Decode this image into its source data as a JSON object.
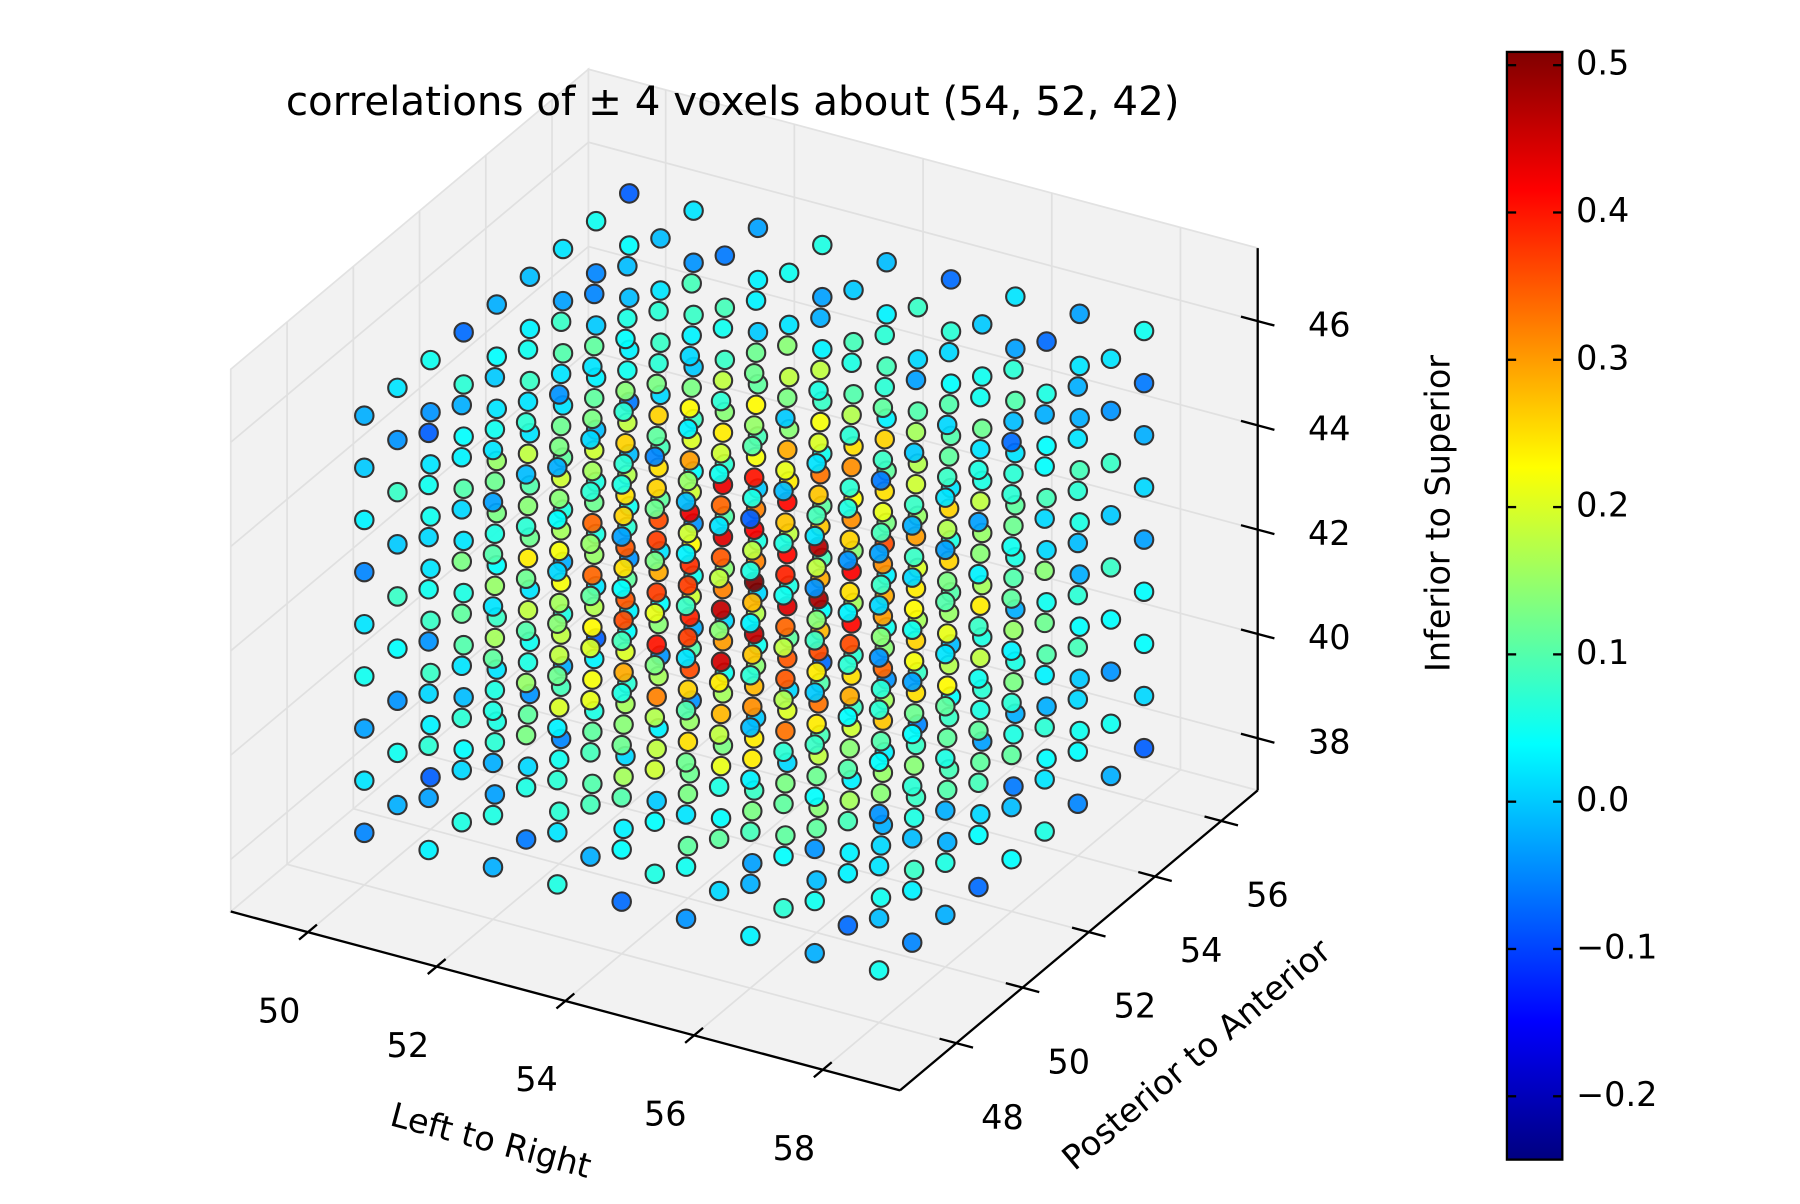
{
  "chart_data": {
    "type": "scatter3d",
    "title": "correlations of ± 4 voxels about (54, 52, 42)",
    "xlabel": "Left to Right",
    "ylabel": "Posterior to Anterior",
    "zlabel": "Inferior to Superior",
    "x": [
      50,
      51,
      52,
      53,
      54,
      55,
      56,
      57,
      58
    ],
    "y": [
      48,
      49,
      50,
      51,
      52,
      53,
      54,
      55,
      56
    ],
    "z": [
      38,
      39,
      40,
      41,
      42,
      43,
      44,
      45,
      46
    ],
    "xlim": [
      48.8,
      59.2
    ],
    "ylim": [
      46.3,
      57.1
    ],
    "zlim": [
      37,
      47.4
    ],
    "xticks": [
      50,
      52,
      54,
      56,
      58
    ],
    "yticks": [
      48,
      50,
      52,
      54,
      56
    ],
    "zticks": [
      38,
      40,
      42,
      44,
      46
    ],
    "colormap": "jet",
    "clim": [
      -0.243,
      0.509
    ],
    "cticks": [
      {
        "value": -0.2,
        "label": "−0.2"
      },
      {
        "value": -0.1,
        "label": "−0.1"
      },
      {
        "value": 0,
        "label": "0.0"
      },
      0.1,
      0.2,
      0.3,
      0.4,
      0.5
    ],
    "grid": true,
    "values": [
      [
        [
          -0.05,
          0.02,
          -0.03,
          0.05,
          0.02,
          -0.05,
          0.03,
          0,
          -0.02
        ],
        [
          -0.02,
          0.05,
          -0.04,
          0.04,
          0.08,
          0,
          0.08,
          -0.04,
          0.02
        ],
        [
          -0.08,
          0.03,
          0.08,
          0.08,
          0.02,
          0.05,
          0.02,
          -0.04,
          0.05
        ],
        [
          0.04,
          -0.01,
          0.1,
          0.06,
          0.02,
          0.1,
          0.04,
          0.07,
          -0.07
        ],
        [
          0.06,
          0.02,
          0.08,
          0.04,
          0.13,
          0.15,
          0.02,
          0.04,
          -0.02
        ],
        [
          -0.04,
          0.05,
          0.02,
          0.12,
          0.1,
          0.02,
          0.08,
          0.03,
          -0.01
        ],
        [
          -0.02,
          0.06,
          -0.02,
          0.06,
          0.11,
          0.02,
          0.1,
          -0.03,
          0.02
        ],
        [
          -0.08,
          0.02,
          0.06,
          0.06,
          -0.01,
          0.03,
          0,
          -0.05,
          0.05
        ],
        [
          0.03,
          -0.04,
          0.05,
          -0.01,
          -0.06,
          0.03,
          -0.01,
          0.04,
          -0.08
        ]
      ],
      [
        [
          0.03,
          -0.03,
          0.07,
          0.01,
          -0.04,
          0.05,
          0.01,
          0.05,
          -0.08
        ],
        [
          0.06,
          0.01,
          0.07,
          0.02,
          0.11,
          0.13,
          0.01,
          0.03,
          -0.02
        ],
        [
          -0.03,
          0.07,
          0.06,
          0.16,
          0.15,
          0.06,
          0.12,
          0.05,
          0
        ],
        [
          0.01,
          0.11,
          0.06,
          0.18,
          0.24,
          0.14,
          0.18,
          0.02,
          0.05
        ],
        [
          -0.05,
          0.09,
          0.18,
          0.22,
          0.16,
          0.19,
          0.12,
          0.02,
          0.08
        ],
        [
          0.06,
          0.03,
          0.17,
          0.15,
          0.12,
          0.19,
          0.11,
          0.11,
          -0.05
        ],
        [
          0.07,
          0.04,
          0.11,
          0.07,
          0.17,
          0.18,
          0.05,
          0.06,
          -0.01
        ],
        [
          -0.04,
          0.04,
          0.02,
          0.11,
          0.09,
          0.01,
          0.08,
          0.02,
          -0.01
        ],
        [
          -0.02,
          0.05,
          -0.04,
          0.04,
          0.08,
          0,
          0.08,
          -0.04,
          0.02
        ]
      ],
      [
        [
          -0.02,
          0.06,
          -0.02,
          0.06,
          0.11,
          0.02,
          0.1,
          -0.03,
          0.02
        ],
        [
          -0.06,
          0.06,
          0.13,
          0.15,
          0.1,
          0.12,
          0.07,
          -0.01,
          0.07
        ],
        [
          0.07,
          0.05,
          0.2,
          0.18,
          0.16,
          0.22,
          0.14,
          0.13,
          -0.04
        ],
        [
          0.1,
          0.11,
          0.22,
          0.23,
          0.34,
          0.34,
          0.16,
          0.13,
          0.02
        ],
        [
          0.01,
          0.16,
          0.2,
          0.35,
          0.35,
          0.25,
          0.26,
          0.14,
          0.04
        ],
        [
          0.03,
          0.16,
          0.14,
          0.29,
          0.36,
          0.25,
          0.26,
          0.07,
          0.07
        ],
        [
          -0.04,
          0.1,
          0.19,
          0.23,
          0.19,
          0.2,
          0.13,
          0.03,
          0.09
        ],
        [
          0.05,
          0.01,
          0.14,
          0.1,
          0.07,
          0.14,
          0.08,
          0.09,
          -0.06
        ],
        [
          0.05,
          0.01,
          0.06,
          0,
          0.09,
          0.11,
          0,
          0.03,
          -0.03
        ]
      ],
      [
        [
          0.06,
          0.02,
          0.07,
          0.03,
          0.12,
          0.14,
          0.01,
          0.04,
          -0.02
        ],
        [
          -0.02,
          0.09,
          0.09,
          0.21,
          0.2,
          0.11,
          0.15,
          0.07,
          0.01
        ],
        [
          0.03,
          0.16,
          0.14,
          0.29,
          0.36,
          0.25,
          0.26,
          0.07,
          0.07
        ],
        [
          0,
          0.18,
          0.32,
          0.4,
          0.37,
          0.37,
          0.26,
          0.11,
          0.13
        ],
        [
          0.12,
          0.15,
          0.36,
          0.39,
          0.38,
          0.43,
          0.3,
          0.23,
          0.01
        ],
        [
          0.13,
          0.16,
          0.3,
          0.32,
          0.44,
          0.43,
          0.24,
          0.18,
          0.05
        ],
        [
          0,
          0.14,
          0.17,
          0.32,
          0.32,
          0.22,
          0.23,
          0.12,
          0.03
        ],
        [
          0.01,
          0.11,
          0.06,
          0.18,
          0.24,
          0.14,
          0.18,
          0.02,
          0.05
        ],
        [
          -0.07,
          0.04,
          0.09,
          0.11,
          0.05,
          0.08,
          0.03,
          -0.03,
          0.06
        ]
      ],
      [
        [
          -0.07,
          0.04,
          0.1,
          0.12,
          0.06,
          0.09,
          0.04,
          -0.03,
          0.06
        ],
        [
          0.06,
          0.04,
          0.19,
          0.17,
          0.13,
          0.21,
          0.13,
          0.12,
          -0.05
        ],
        [
          0.11,
          0.13,
          0.25,
          0.26,
          0.37,
          0.37,
          0.19,
          0.15,
          0.03
        ],
        [
          0.04,
          0.21,
          0.28,
          0.45,
          0.46,
          0.35,
          0.34,
          0.19,
          0.07
        ],
        [
          0.08,
          0.24,
          0.28,
          0.46,
          0.51,
          0.42,
          0.4,
          0.15,
          0.12
        ],
        [
          0.01,
          0.2,
          0.35,
          0.44,
          0.41,
          0.41,
          0.29,
          0.13,
          0.14
        ],
        [
          0.09,
          0.1,
          0.28,
          0.29,
          0.27,
          0.33,
          0.22,
          0.18,
          -0.02
        ],
        [
          0.08,
          0.07,
          0.16,
          0.14,
          0.23,
          0.25,
          0.1,
          0.09,
          0
        ],
        [
          -0.04,
          0.05,
          0.03,
          0.13,
          0.11,
          0.03,
          0.09,
          0.03,
          -0.01
        ]
      ],
      [
        [
          -0.04,
          0.05,
          0.02,
          0.12,
          0.1,
          0.02,
          0.08,
          0.03,
          -0.01
        ],
        [
          0.01,
          0.11,
          0.06,
          0.18,
          0.24,
          0.14,
          0.18,
          0.02,
          0.05
        ],
        [
          -0.03,
          0.13,
          0.24,
          0.31,
          0.27,
          0.28,
          0.18,
          0.06,
          0.1
        ],
        [
          0.11,
          0.13,
          0.33,
          0.35,
          0.34,
          0.39,
          0.27,
          0.21,
          0
        ],
        [
          0.14,
          0.18,
          0.33,
          0.36,
          0.48,
          0.47,
          0.27,
          0.2,
          0.06
        ],
        [
          0.03,
          0.19,
          0.25,
          0.41,
          0.42,
          0.31,
          0.31,
          0.17,
          0.06
        ],
        [
          0.03,
          0.16,
          0.14,
          0.29,
          0.36,
          0.25,
          0.26,
          0.07,
          0.07
        ],
        [
          -0.05,
          0.08,
          0.16,
          0.2,
          0.15,
          0.17,
          0.1,
          0.01,
          0.08
        ],
        [
          0.04,
          -0.01,
          0.1,
          0.06,
          0.02,
          0.1,
          0.04,
          0.07,
          -0.07
        ]
      ],
      [
        [
          0.03,
          -0.02,
          0.09,
          0.03,
          -0.01,
          0.07,
          0.03,
          0.06,
          -0.08
        ],
        [
          0.07,
          0.04,
          0.11,
          0.07,
          0.17,
          0.18,
          0.05,
          0.06,
          -0.01
        ],
        [
          -0.01,
          0.11,
          0.12,
          0.24,
          0.24,
          0.14,
          0.18,
          0.09,
          0.02
        ],
        [
          0.03,
          0.16,
          0.14,
          0.29,
          0.36,
          0.25,
          0.26,
          0.07,
          0.07
        ],
        [
          -0.02,
          0.15,
          0.27,
          0.34,
          0.3,
          0.31,
          0.21,
          0.08,
          0.11
        ],
        [
          0.08,
          0.08,
          0.25,
          0.26,
          0.24,
          0.3,
          0.19,
          0.16,
          -0.03
        ],
        [
          0.09,
          0.08,
          0.17,
          0.15,
          0.26,
          0.26,
          0.11,
          0.1,
          0.01
        ],
        [
          -0.03,
          0.07,
          0.06,
          0.16,
          0.15,
          0.06,
          0.12,
          0.05,
          0
        ],
        [
          -0.02,
          0.06,
          -0.02,
          0.06,
          0.11,
          0.02,
          0.1,
          -0.03,
          0.02
        ]
      ],
      [
        [
          -0.02,
          0.05,
          -0.04,
          0.04,
          0.08,
          0,
          0.08,
          -0.04,
          0.02
        ],
        [
          -0.07,
          0.03,
          0.09,
          0.1,
          0.04,
          0.07,
          0.03,
          -0.04,
          0.06
        ],
        [
          0.05,
          0.01,
          0.14,
          0.1,
          0.07,
          0.14,
          0.08,
          0.09,
          -0.06
        ],
        [
          0.08,
          0.06,
          0.14,
          0.12,
          0.22,
          0.23,
          0.08,
          0.08,
          0
        ],
        [
          -0.02,
          0.1,
          0.11,
          0.23,
          0.21,
          0.13,
          0.17,
          0.08,
          0.01
        ],
        [
          0.01,
          0.11,
          0.06,
          0.18,
          0.24,
          0.14,
          0.18,
          0.02,
          0.05
        ],
        [
          -0.06,
          0.06,
          0.13,
          0.15,
          0.1,
          0.12,
          0.07,
          -0.01,
          0.07
        ],
        [
          0.04,
          -0.02,
          0.1,
          0.05,
          0.01,
          0.09,
          0.04,
          0.06,
          -0.07
        ],
        [
          0.05,
          0,
          0.04,
          -0.02,
          0.06,
          0.09,
          -0.02,
          0.02,
          -0.03
        ]
      ],
      [
        [
          0.05,
          -0.01,
          0.02,
          -0.04,
          0.04,
          0.07,
          -0.04,
          0.01,
          -0.03
        ],
        [
          -0.05,
          0.03,
          -0.01,
          0.07,
          0.04,
          -0.03,
          0.05,
          0.01,
          -0.02
        ],
        [
          -0.02,
          0.06,
          -0.02,
          0.06,
          0.11,
          0.02,
          0.1,
          -0.03,
          0.02
        ],
        [
          -0.07,
          0.04,
          0.09,
          0.11,
          0.05,
          0.08,
          0.03,
          -0.03,
          0.06
        ],
        [
          0.04,
          -0.01,
          0.11,
          0.07,
          0.03,
          0.11,
          0.05,
          0.07,
          -0.07
        ],
        [
          0.06,
          0.02,
          0.07,
          0.03,
          0.12,
          0.14,
          0.01,
          0.04,
          -0.02
        ],
        [
          -0.05,
          0.04,
          0.01,
          0.09,
          0.07,
          -0.01,
          0.07,
          0.02,
          -0.02
        ],
        [
          -0.02,
          0.05,
          -0.04,
          0.04,
          0.08,
          0,
          0.08,
          -0.04,
          0.02
        ],
        [
          -0.08,
          0.01,
          0.04,
          0.04,
          -0.03,
          0.01,
          -0.02,
          -0.06,
          0.05
        ]
      ]
    ]
  }
}
